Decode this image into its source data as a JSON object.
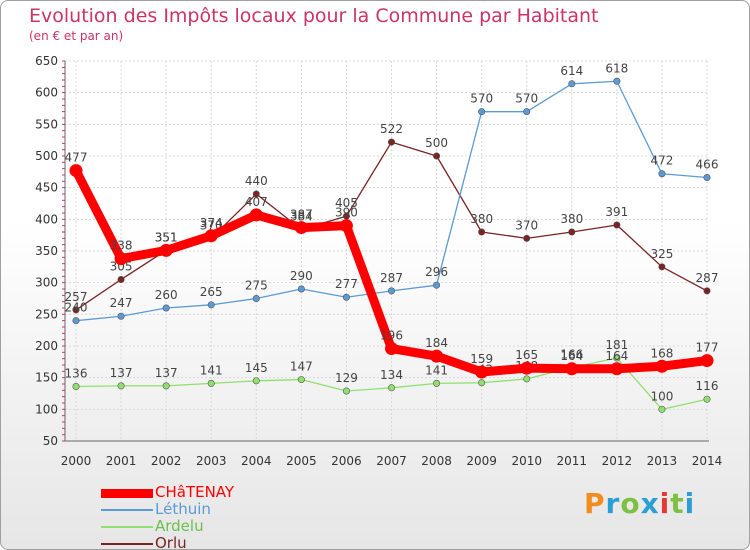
{
  "title": "Evolution des Impôts locaux pour la Commune par Habitant",
  "subtitle": "(en € et par an)",
  "logo": {
    "text": "Proxiti",
    "colors": [
      "#f28c1e",
      "#2a9fd6",
      "#7cc142",
      "#2a9fd6",
      "#e53935",
      "#7cc142",
      "#2a9fd6"
    ]
  },
  "chart_data": {
    "type": "line",
    "x": [
      "2000",
      "2001",
      "2002",
      "2003",
      "2004",
      "2005",
      "2006",
      "2007",
      "2008",
      "2009",
      "2010",
      "2011",
      "2012",
      "2013",
      "2014"
    ],
    "ylim": [
      50,
      650
    ],
    "yticks": [
      50,
      100,
      150,
      200,
      250,
      300,
      350,
      400,
      450,
      500,
      550,
      600,
      650
    ],
    "grid": true,
    "legend_position": "bottom-left",
    "series": [
      {
        "name": "Orlu",
        "color": "#7a2323",
        "values": [
          257,
          305,
          351,
          370,
          440,
          384,
          405,
          522,
          500,
          380,
          370,
          380,
          391,
          325,
          287
        ]
      },
      {
        "name": "Léthuin",
        "color": "#5b9bd5",
        "values": [
          240,
          247,
          260,
          265,
          275,
          290,
          277,
          287,
          296,
          570,
          570,
          614,
          618,
          472,
          466
        ]
      },
      {
        "name": "Ardelu",
        "color": "#90e070",
        "values": [
          136,
          137,
          137,
          141,
          145,
          147,
          129,
          134,
          141,
          142,
          148,
          166,
          181,
          100,
          116
        ]
      },
      {
        "name": "CHâTENAY",
        "color": "#ff0000",
        "values": [
          477,
          338,
          351,
          374,
          407,
          387,
          390,
          196,
          184,
          159,
          165,
          164,
          164,
          168,
          177
        ]
      }
    ],
    "legend_order": [
      "CHâTENAY",
      "Léthuin",
      "Ardelu",
      "Orlu"
    ]
  }
}
